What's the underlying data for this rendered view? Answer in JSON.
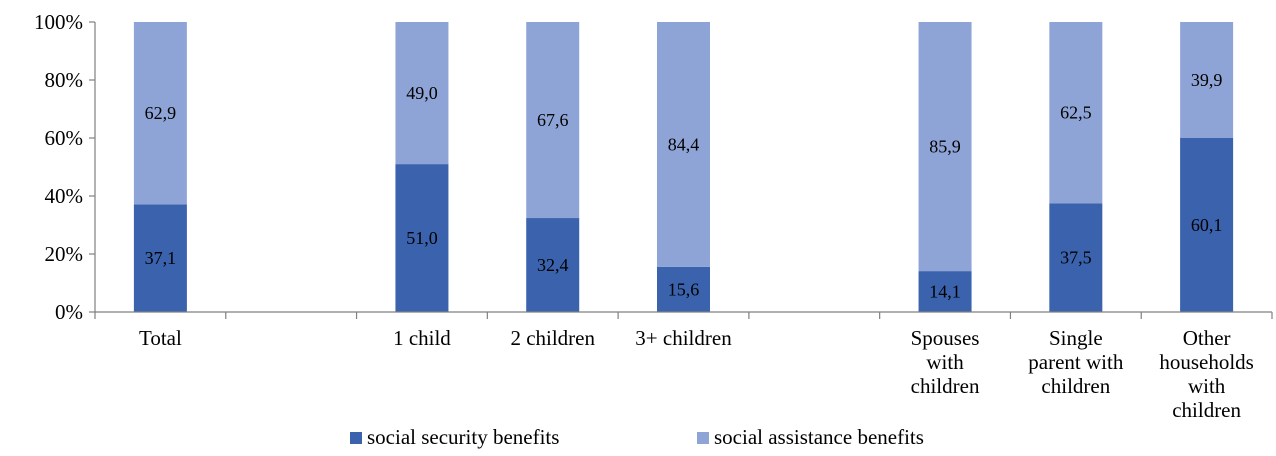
{
  "chart_data": {
    "type": "bar",
    "stacked": true,
    "percent_stacked": true,
    "categories": [
      [
        "Total"
      ],
      [
        ""
      ],
      [
        "1 child"
      ],
      [
        "2 children"
      ],
      [
        "3+ children"
      ],
      [
        ""
      ],
      [
        "Spouses",
        "with",
        "children"
      ],
      [
        "Single",
        "parent with",
        "children"
      ],
      [
        "Other",
        "households",
        "with",
        "children"
      ]
    ],
    "series": [
      {
        "name": "social security benefits",
        "color": "#3a62ad",
        "values": [
          37.1,
          null,
          51.0,
          32.4,
          15.6,
          null,
          14.1,
          37.5,
          60.1
        ],
        "labels": [
          "37,1",
          "",
          "51,0",
          "32,4",
          "15,6",
          "",
          "14,1",
          "37,5",
          "60,1"
        ]
      },
      {
        "name": "social assistance benefits",
        "color": "#8fa4d6",
        "values": [
          62.9,
          null,
          49.0,
          67.6,
          84.4,
          null,
          85.9,
          62.5,
          39.9
        ],
        "labels": [
          "62,9",
          "",
          "49,0",
          "67,6",
          "84,4",
          "",
          "85,9",
          "62,5",
          "39,9"
        ]
      }
    ],
    "y_ticks": [
      "0%",
      "20%",
      "40%",
      "60%",
      "80%",
      "100%"
    ],
    "ylim": [
      0,
      100
    ],
    "grid": false,
    "legend_position": "bottom"
  }
}
